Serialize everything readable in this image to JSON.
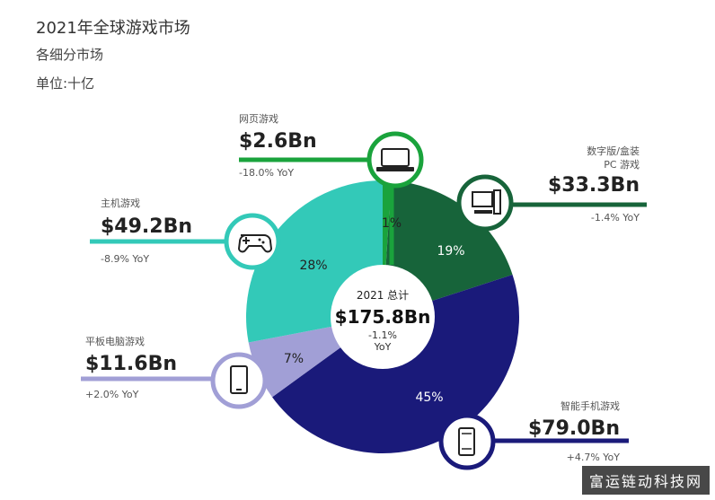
{
  "header": {
    "title": "2021年全球游戏市场",
    "subtitle": "各细分市场",
    "unit": "单位:十亿"
  },
  "chart_data": {
    "type": "pie",
    "title": "2021年全球游戏市场",
    "subtitle": "各细分市场",
    "unit": "单位:十亿",
    "total": {
      "year_label": "2021 总计",
      "value": "$175.8Bn",
      "yoy": "-1.1%",
      "yoy_label": "YoY"
    },
    "segments": [
      {
        "name": "网页游戏",
        "name_line2": "",
        "value": 2.6,
        "value_label": "$2.6Bn",
        "share": 1,
        "share_label": "1%",
        "yoy": "-18.0% YoY",
        "color": "#1aa33c",
        "icon": "laptop-icon"
      },
      {
        "name": "数字版/盒装",
        "name_line2": "PC 游戏",
        "value": 33.3,
        "value_label": "$33.3Bn",
        "share": 19,
        "share_label": "19%",
        "yoy": "-1.4% YoY",
        "color": "#17643a",
        "icon": "desktop-pc-icon"
      },
      {
        "name": "智能手机游戏",
        "name_line2": "",
        "value": 79.0,
        "value_label": "$79.0Bn",
        "share": 45,
        "share_label": "45%",
        "yoy": "+4.7% YoY",
        "color": "#1a1a7a",
        "icon": "smartphone-icon"
      },
      {
        "name": "平板电脑游戏",
        "name_line2": "",
        "value": 11.6,
        "value_label": "$11.6Bn",
        "share": 7,
        "share_label": "7%",
        "yoy": "+2.0% YoY",
        "color": "#a19fd6",
        "icon": "tablet-icon"
      },
      {
        "name": "主机游戏",
        "name_line2": "",
        "value": 49.2,
        "value_label": "$49.2Bn",
        "share": 28,
        "share_label": "28%",
        "yoy": "-8.9% YoY",
        "color": "#33c9b8",
        "icon": "gamepad-icon"
      }
    ]
  },
  "watermark": "富运链动科技网"
}
